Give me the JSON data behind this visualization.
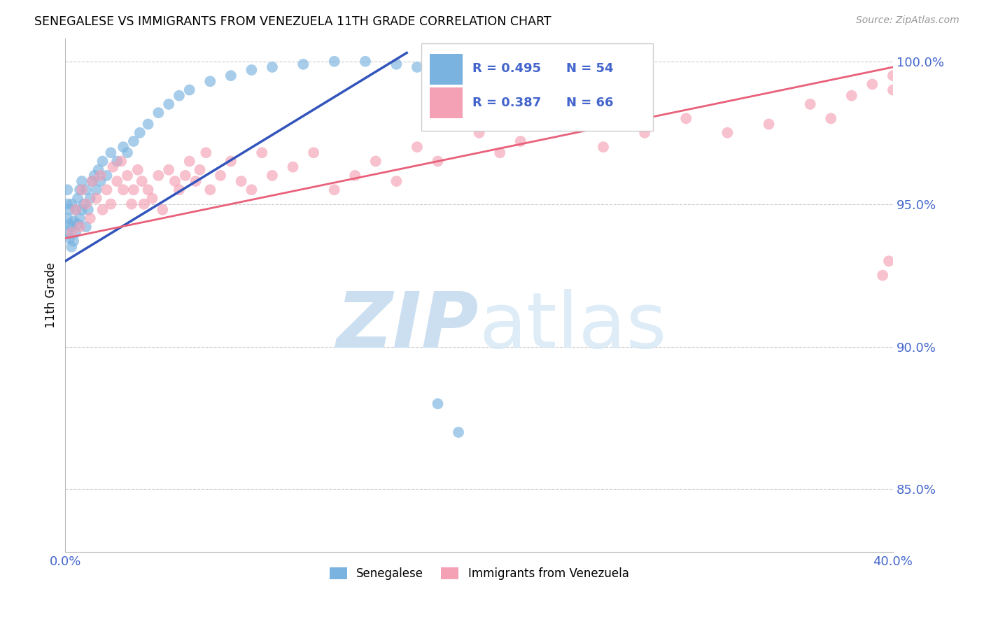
{
  "title": "SENEGALESE VS IMMIGRANTS FROM VENEZUELA 11TH GRADE CORRELATION CHART",
  "source": "Source: ZipAtlas.com",
  "ylabel_label": "11th Grade",
  "x_min": 0.0,
  "x_max": 0.4,
  "y_min": 0.828,
  "y_max": 1.008,
  "x_ticks": [
    0.0,
    0.05,
    0.1,
    0.15,
    0.2,
    0.25,
    0.3,
    0.35,
    0.4
  ],
  "x_tick_labels": [
    "0.0%",
    "",
    "",
    "",
    "",
    "",
    "",
    "",
    "40.0%"
  ],
  "y_ticks": [
    0.85,
    0.9,
    0.95,
    1.0
  ],
  "y_tick_labels": [
    "85.0%",
    "90.0%",
    "95.0%",
    "100.0%"
  ],
  "blue_R": 0.495,
  "blue_N": 54,
  "pink_R": 0.387,
  "pink_N": 66,
  "blue_color": "#7ab3e0",
  "pink_color": "#f4a0b5",
  "blue_line_color": "#3355bb",
  "pink_line_color": "#e8607a",
  "grid_color": "#cccccc",
  "bg_color": "#ffffff",
  "text_color": "#4466cc",
  "blue_scatter_x": [
    0.001,
    0.001,
    0.001,
    0.001,
    0.002,
    0.002,
    0.002,
    0.003,
    0.003,
    0.003,
    0.004,
    0.004,
    0.005,
    0.005,
    0.006,
    0.006,
    0.007,
    0.007,
    0.008,
    0.008,
    0.009,
    0.01,
    0.01,
    0.011,
    0.012,
    0.013,
    0.014,
    0.015,
    0.016,
    0.017,
    0.018,
    0.02,
    0.022,
    0.025,
    0.028,
    0.03,
    0.033,
    0.036,
    0.04,
    0.045,
    0.05,
    0.055,
    0.06,
    0.07,
    0.08,
    0.09,
    0.1,
    0.115,
    0.13,
    0.145,
    0.16,
    0.17,
    0.18,
    0.19
  ],
  "blue_scatter_y": [
    0.94,
    0.945,
    0.95,
    0.955,
    0.938,
    0.943,
    0.948,
    0.935,
    0.942,
    0.95,
    0.937,
    0.944,
    0.94,
    0.948,
    0.943,
    0.952,
    0.945,
    0.955,
    0.948,
    0.958,
    0.95,
    0.942,
    0.955,
    0.948,
    0.952,
    0.958,
    0.96,
    0.955,
    0.962,
    0.958,
    0.965,
    0.96,
    0.968,
    0.965,
    0.97,
    0.968,
    0.972,
    0.975,
    0.978,
    0.982,
    0.985,
    0.988,
    0.99,
    0.993,
    0.995,
    0.997,
    0.998,
    0.999,
    1.0,
    1.0,
    0.999,
    0.998,
    0.88,
    0.87
  ],
  "pink_scatter_x": [
    0.003,
    0.005,
    0.007,
    0.008,
    0.01,
    0.012,
    0.013,
    0.015,
    0.017,
    0.018,
    0.02,
    0.022,
    0.023,
    0.025,
    0.027,
    0.028,
    0.03,
    0.032,
    0.033,
    0.035,
    0.037,
    0.038,
    0.04,
    0.042,
    0.045,
    0.047,
    0.05,
    0.053,
    0.055,
    0.058,
    0.06,
    0.063,
    0.065,
    0.068,
    0.07,
    0.075,
    0.08,
    0.085,
    0.09,
    0.095,
    0.1,
    0.11,
    0.12,
    0.13,
    0.14,
    0.15,
    0.16,
    0.17,
    0.18,
    0.2,
    0.21,
    0.22,
    0.24,
    0.26,
    0.28,
    0.3,
    0.32,
    0.34,
    0.36,
    0.37,
    0.38,
    0.39,
    0.395,
    0.398,
    0.4,
    0.4
  ],
  "pink_scatter_y": [
    0.94,
    0.948,
    0.942,
    0.955,
    0.95,
    0.945,
    0.958,
    0.952,
    0.96,
    0.948,
    0.955,
    0.95,
    0.963,
    0.958,
    0.965,
    0.955,
    0.96,
    0.95,
    0.955,
    0.962,
    0.958,
    0.95,
    0.955,
    0.952,
    0.96,
    0.948,
    0.962,
    0.958,
    0.955,
    0.96,
    0.965,
    0.958,
    0.962,
    0.968,
    0.955,
    0.96,
    0.965,
    0.958,
    0.955,
    0.968,
    0.96,
    0.963,
    0.968,
    0.955,
    0.96,
    0.965,
    0.958,
    0.97,
    0.965,
    0.975,
    0.968,
    0.972,
    0.978,
    0.97,
    0.975,
    0.98,
    0.975,
    0.978,
    0.985,
    0.98,
    0.988,
    0.992,
    0.925,
    0.93,
    0.99,
    0.995
  ],
  "blue_line_x": [
    0.0,
    0.165
  ],
  "blue_line_y": [
    0.93,
    1.003
  ],
  "pink_line_x": [
    0.0,
    0.4
  ],
  "pink_line_y": [
    0.938,
    0.998
  ]
}
